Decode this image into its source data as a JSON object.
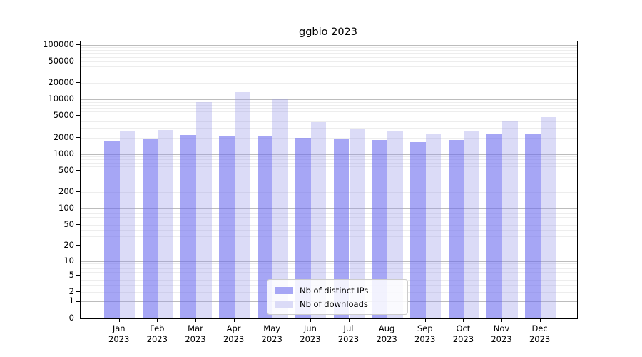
{
  "title": "ggbio 2023",
  "chart_data": {
    "type": "bar",
    "title": "ggbio 2023",
    "categories": [
      "Jan 2023",
      "Feb 2023",
      "Mar 2023",
      "Apr 2023",
      "May 2023",
      "Jun 2023",
      "Jul 2023",
      "Aug 2023",
      "Sep 2023",
      "Oct 2023",
      "Nov 2023",
      "Dec 2023"
    ],
    "series": [
      {
        "name": "Nb of distinct IPs",
        "color": "#a6a6f5",
        "fill_rgba": "rgba(107,107,238,0.6)",
        "values": [
          1700,
          1850,
          2250,
          2200,
          2100,
          2000,
          1850,
          1800,
          1650,
          1800,
          2350,
          2300
        ]
      },
      {
        "name": "Nb of downloads",
        "color": "#dbdbf7",
        "fill_rgba": "rgba(152,152,232,0.35)",
        "values": [
          2600,
          2750,
          9000,
          13500,
          10300,
          3800,
          2900,
          2650,
          2300,
          2650,
          3900,
          4700
        ]
      }
    ],
    "xlabel": "",
    "ylabel": "",
    "y_ticks": [
      0,
      1,
      2,
      5,
      10,
      20,
      50,
      100,
      200,
      500,
      1000,
      2000,
      5000,
      10000,
      20000,
      50000,
      100000
    ],
    "ylim": [
      0,
      100000
    ],
    "yscale": "log1p",
    "grid": true,
    "legend_position": "lower-center",
    "grid_major_color": "#bcbcbc",
    "grid_minor_color": "#ededed"
  }
}
